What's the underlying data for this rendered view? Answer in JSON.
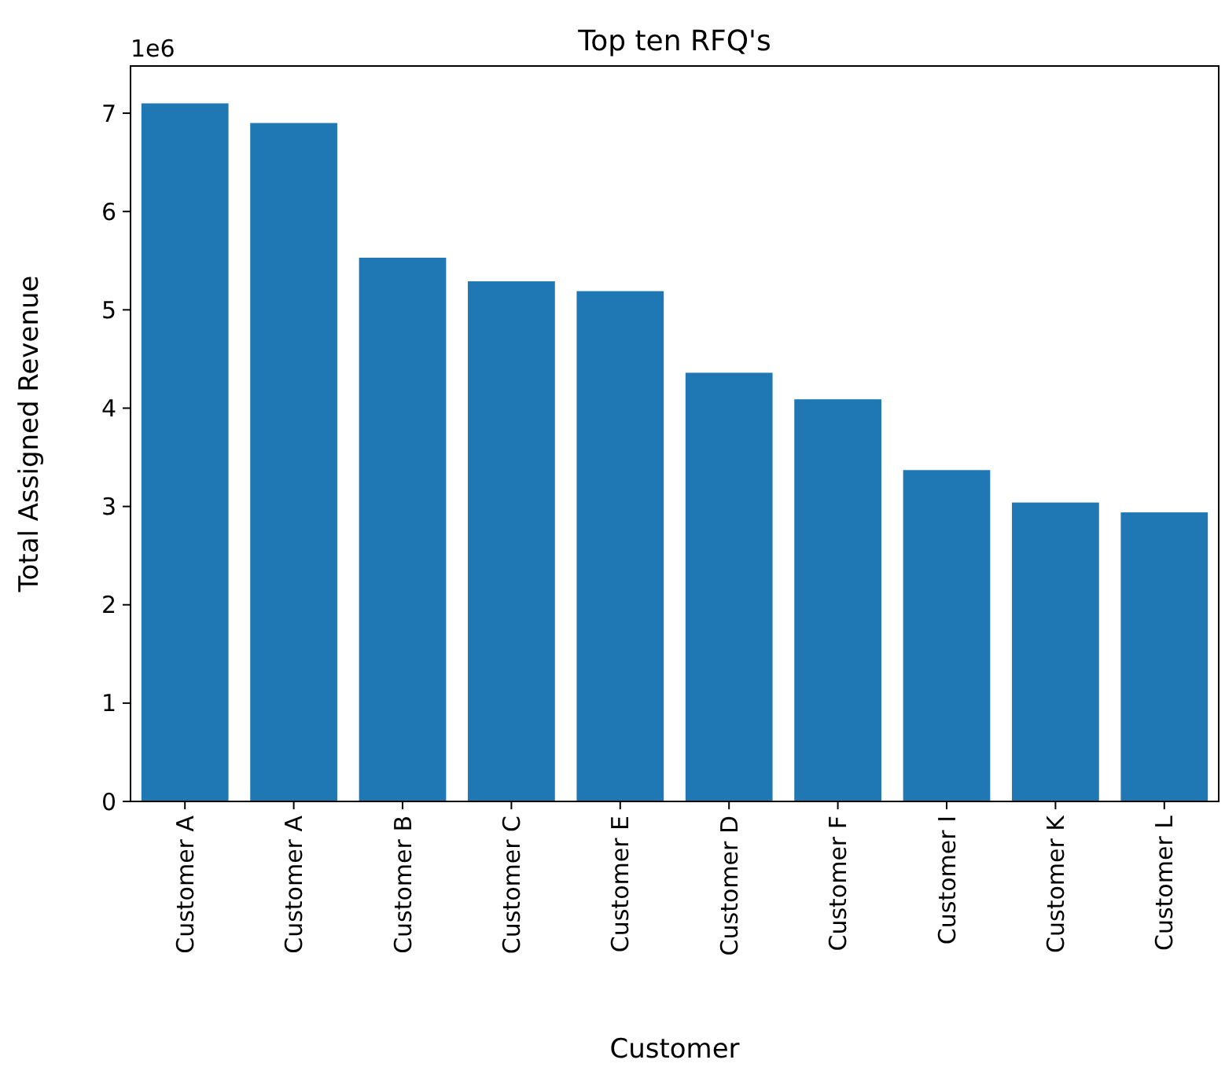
{
  "chart_data": {
    "type": "bar",
    "title": "Top ten RFQ's",
    "xlabel": "Customer",
    "ylabel": "Total Assigned Revenue",
    "categories": [
      "Customer A",
      "Customer A",
      "Customer B",
      "Customer C",
      "Customer E",
      "Customer D",
      "Customer F",
      "Customer I",
      "Customer K",
      "Customer L"
    ],
    "values": [
      7.1,
      6.9,
      5.53,
      5.29,
      5.19,
      4.36,
      4.09,
      3.37,
      3.04,
      2.94
    ],
    "color": "#1f77b4",
    "ylim": [
      0,
      7.48
    ],
    "yticks": [
      0,
      1,
      2,
      3,
      4,
      5,
      6,
      7
    ],
    "annotations": [
      "1e6"
    ]
  }
}
